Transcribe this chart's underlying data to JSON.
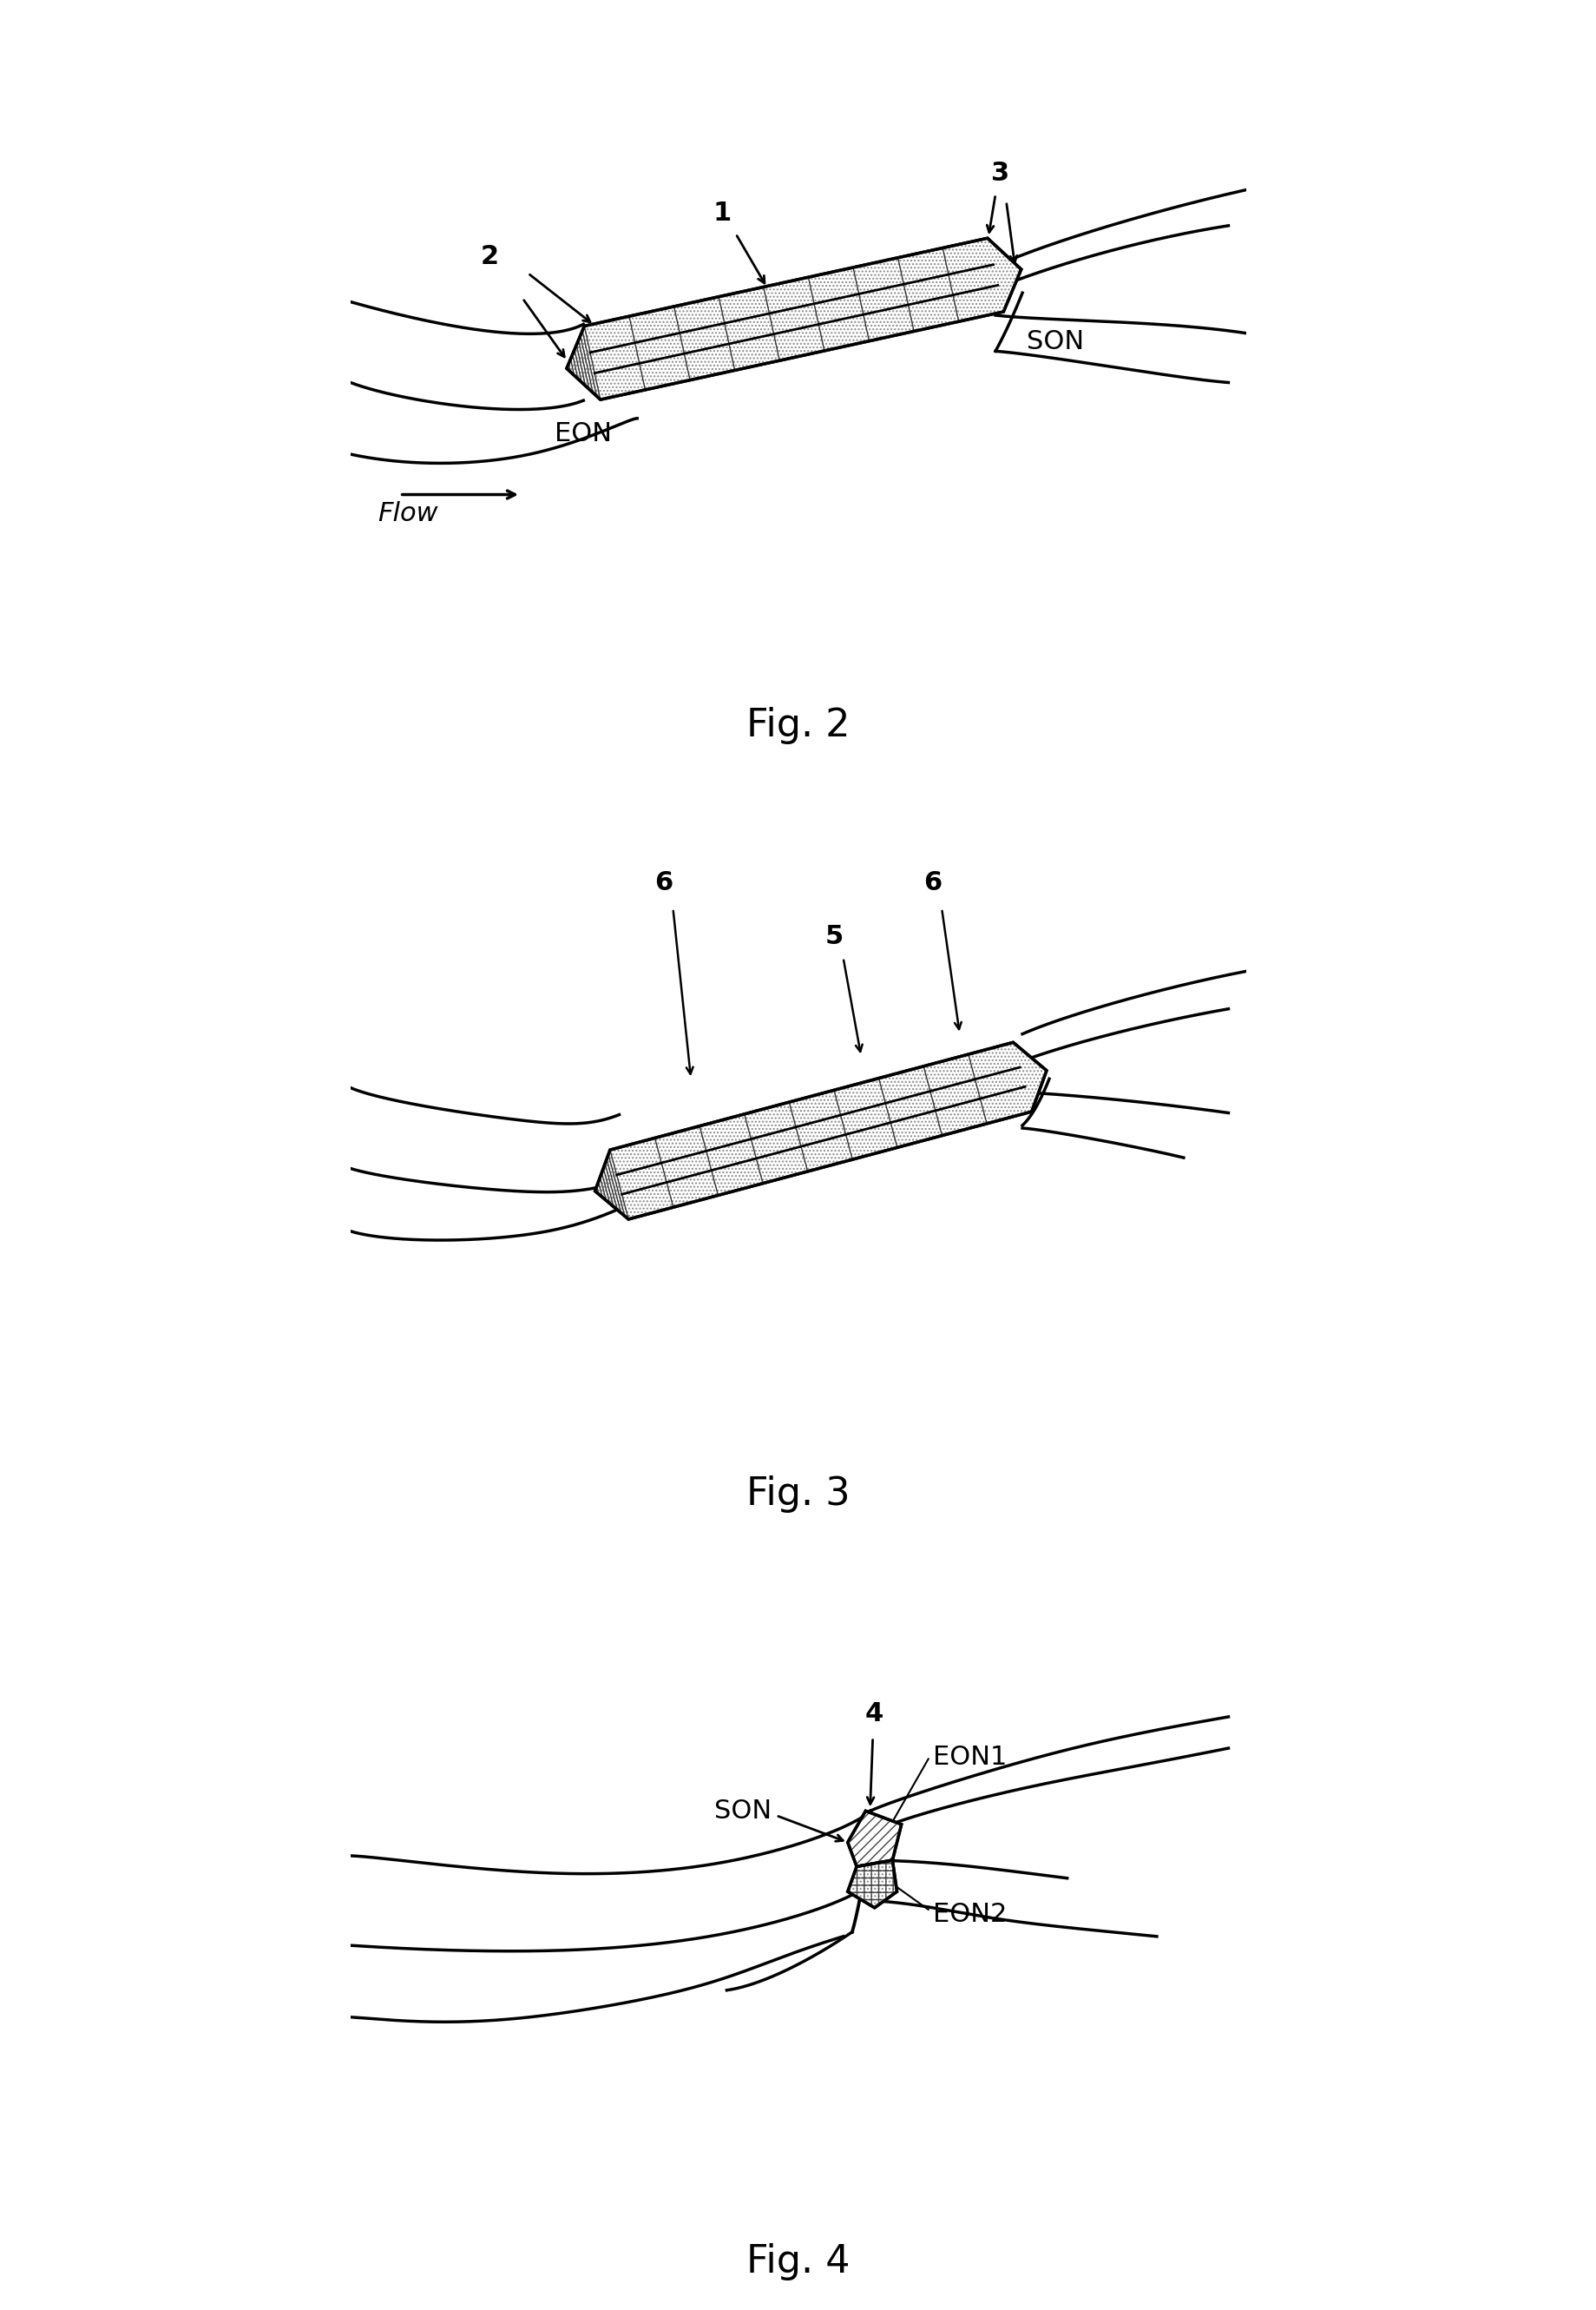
{
  "fig2_label": "Fig. 2",
  "fig3_label": "Fig. 3",
  "fig4_label": "Fig. 4",
  "background_color": "#ffffff",
  "line_color": "#000000",
  "line_width": 2.5,
  "font_size_label": 22,
  "font_size_number": 22,
  "font_size_fig": 32
}
